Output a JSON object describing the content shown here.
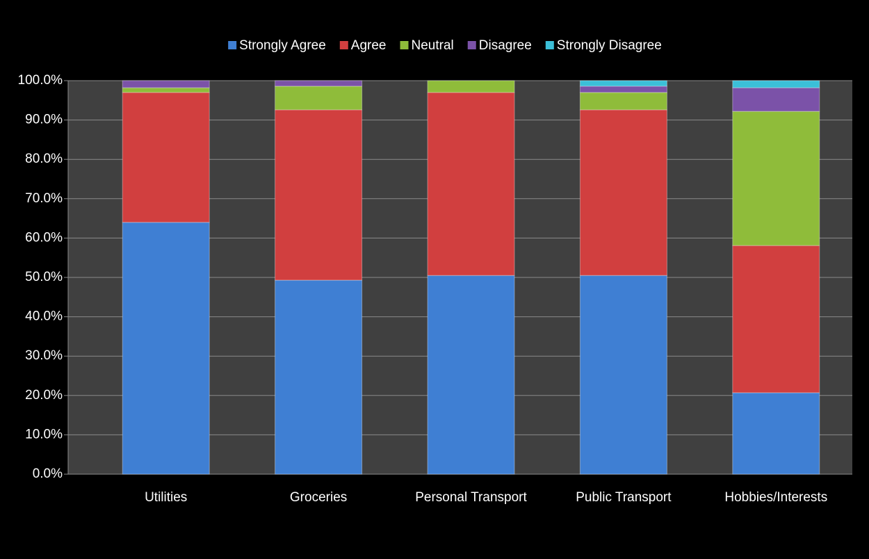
{
  "chart_data": {
    "type": "stacked_bar",
    "categories": [
      "Utilities",
      "Groceries",
      "Personal Transport",
      "Public Transport",
      "Hobbies/Interests"
    ],
    "series": [
      {
        "name": "Strongly Agree",
        "color": "#3f7fd3",
        "values": [
          64.0,
          49.3,
          50.5,
          50.5,
          20.7
        ]
      },
      {
        "name": "Agree",
        "color": "#d13f3f",
        "values": [
          33.0,
          43.3,
          46.5,
          42.1,
          37.4
        ]
      },
      {
        "name": "Neutral",
        "color": "#8fbc3a",
        "values": [
          1.2,
          6.0,
          3.0,
          4.4,
          34.1
        ]
      },
      {
        "name": "Disagree",
        "color": "#7b52a8",
        "values": [
          1.8,
          1.4,
          0,
          1.6,
          6.0
        ]
      },
      {
        "name": "Strongly Disagree",
        "color": "#3bbfd8",
        "values": [
          0,
          0,
          0,
          1.4,
          1.8
        ]
      }
    ],
    "ylim": [
      0,
      100
    ],
    "yticks": [
      {
        "value": 0,
        "label": "0.0%"
      },
      {
        "value": 10,
        "label": "10.0%"
      },
      {
        "value": 20,
        "label": "20.0%"
      },
      {
        "value": 30,
        "label": "30.0%"
      },
      {
        "value": 40,
        "label": "40.0%"
      },
      {
        "value": 50,
        "label": "50.0%"
      },
      {
        "value": 60,
        "label": "60.0%"
      },
      {
        "value": 70,
        "label": "70.0%"
      },
      {
        "value": 80,
        "label": "80.0%"
      },
      {
        "value": 90,
        "label": "90.0%"
      },
      {
        "value": 100,
        "label": "100.0%"
      }
    ],
    "grid": true,
    "legend": "top"
  }
}
